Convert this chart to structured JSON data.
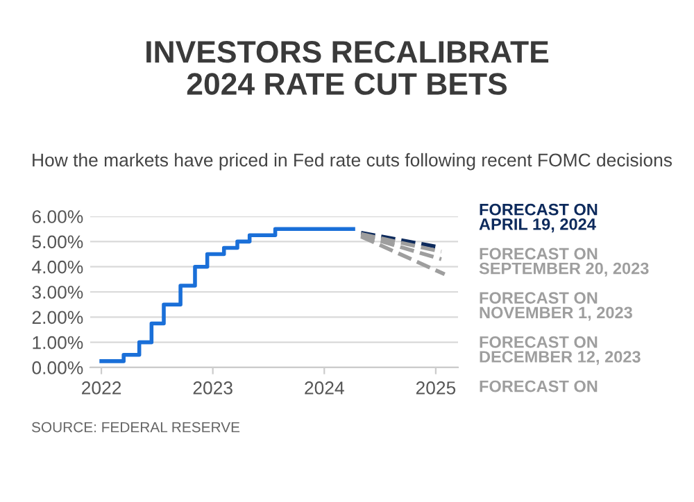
{
  "chart_data": {
    "type": "step",
    "title": "INVESTORS RECALIBRATE\n2024 RATE CUT BETS",
    "subtitle": "How the markets have priced in Fed rate cuts following recent FOMC decisions",
    "annotations": [
      "SOURCE: FEDERAL RESERVE",
      "FORECAST ON"
    ],
    "xlim": [
      2021.9,
      2025.2
    ],
    "xticks": [
      2022,
      2023,
      2024,
      2025
    ],
    "ylim": [
      0,
      6
    ],
    "yticks": [
      {
        "value": 0,
        "label": "0.00%"
      },
      {
        "value": 1,
        "label": "1.00%"
      },
      {
        "value": 2,
        "label": "2.00%"
      },
      {
        "value": 3,
        "label": "3.00%"
      },
      {
        "value": 4,
        "label": "4.00%"
      },
      {
        "value": 5,
        "label": "5.00%"
      },
      {
        "value": 6,
        "label": "6.00%"
      }
    ],
    "grid": "y",
    "legend": "right",
    "series": [
      {
        "color": "#1a6fd8",
        "line_style": "solid",
        "x": [
          2022.0,
          2022.2,
          2022.34,
          2022.45,
          2022.56,
          2022.71,
          2022.84,
          2022.95,
          2023.1,
          2023.22,
          2023.33,
          2023.56,
          2024.26
        ],
        "values": [
          0.25,
          0.5,
          1.0,
          1.75,
          2.5,
          3.25,
          4.0,
          4.5,
          4.75,
          5.0,
          5.25,
          5.5,
          5.5
        ]
      },
      {
        "type": "line",
        "name": "FORECAST ON\nAPRIL 19, 2024",
        "color": "#0d2a5c",
        "line_style": "dashed",
        "x": [
          2024.33,
          2025.0
        ],
        "values": [
          5.35,
          4.8
        ]
      },
      {
        "type": "line",
        "name": "FORECAST ON\nSEPTEMBER 20, 2023",
        "color": "#9e9e9e",
        "line_style": "dashed",
        "x": [
          2024.33,
          2025.05
        ],
        "values": [
          5.3,
          4.6
        ]
      },
      {
        "type": "line",
        "name": "FORECAST ON\nNOVEMBER 1, 2023",
        "color": "#9e9e9e",
        "line_style": "dashed",
        "x": [
          2024.33,
          2025.05
        ],
        "values": [
          5.25,
          4.3
        ]
      },
      {
        "type": "line",
        "name": "FORECAST ON\nDECEMBER 12, 2023",
        "color": "#9e9e9e",
        "line_style": "dashed",
        "x": [
          2024.33,
          2025.08
        ],
        "values": [
          5.2,
          3.7
        ]
      }
    ]
  }
}
